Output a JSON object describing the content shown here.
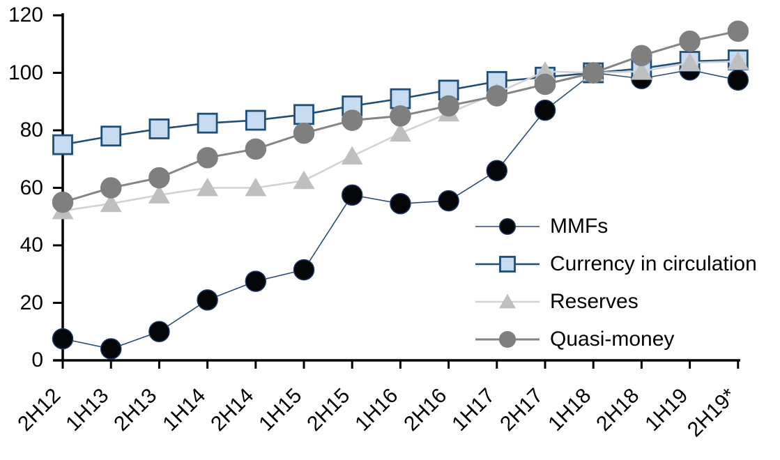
{
  "chart_data": {
    "type": "line",
    "title": "",
    "xlabel": "",
    "ylabel": "",
    "ylim": [
      0,
      120
    ],
    "ytick_step": 20,
    "ytick_labels": [
      "0",
      "20",
      "40",
      "60",
      "80",
      "100",
      "120"
    ],
    "grid": false,
    "legend_position": "inside-right",
    "axis_color": "#000000",
    "background_color": "#ffffff",
    "categories": [
      "2H12",
      "1H13",
      "2H13",
      "1H14",
      "2H14",
      "1H15",
      "2H15",
      "1H16",
      "2H16",
      "1H17",
      "2H17",
      "1H18",
      "2H18",
      "1H19",
      "2H19*"
    ],
    "series": [
      {
        "name": "MMFs",
        "marker": "circle",
        "marker_fill": "#050608",
        "marker_stroke": "#1f3864",
        "line_color": "#2e4d7b",
        "line_width": 1.6,
        "values": [
          7.5,
          4,
          10,
          21,
          27.5,
          31.5,
          57.5,
          54.5,
          55.5,
          66,
          87,
          100,
          98,
          101,
          97.5
        ]
      },
      {
        "name": "Currency in circulation",
        "marker": "square",
        "marker_fill": "#c6daf0",
        "marker_stroke": "#1f4e79",
        "line_color": "#1f4e79",
        "line_width": 2.6,
        "values": [
          75,
          78,
          80.5,
          82.5,
          83.5,
          85.5,
          88.5,
          91,
          94,
          97,
          98.5,
          100,
          101.5,
          104,
          104.5
        ]
      },
      {
        "name": "Reserves",
        "marker": "triangle",
        "marker_fill": "#bfbfbf",
        "marker_stroke": "#bfbfbf",
        "line_color": "#d2d2d2",
        "line_width": 2.6,
        "values": [
          52,
          54.5,
          57.5,
          60,
          60,
          62.5,
          71,
          79,
          86,
          93,
          100.5,
          100,
          100.5,
          103.5,
          104
        ]
      },
      {
        "name": "Quasi-money",
        "marker": "circle",
        "marker_fill": "#7f7f7f",
        "marker_stroke": "#7f7f7f",
        "line_color": "#858585",
        "line_width": 3,
        "values": [
          55,
          60,
          63.5,
          70.5,
          73.5,
          79,
          83.5,
          85,
          88.5,
          92,
          96,
          100,
          106,
          111,
          114.5
        ]
      }
    ]
  }
}
